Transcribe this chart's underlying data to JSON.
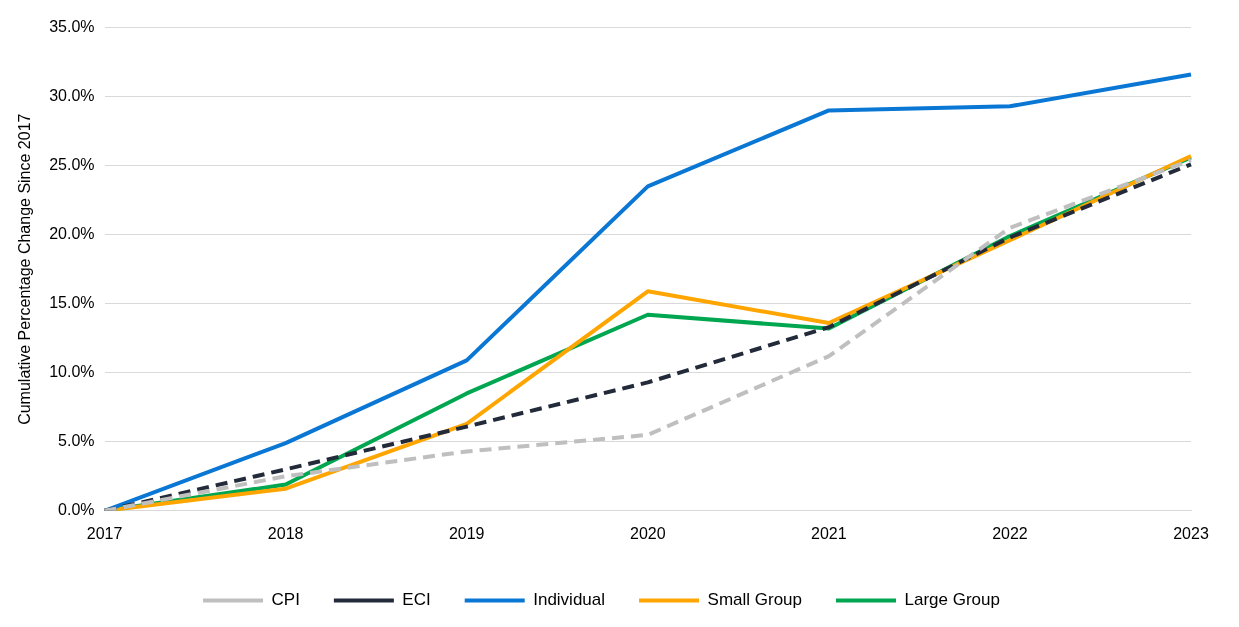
{
  "chart_data": {
    "type": "line",
    "ylabel": "Cumulative Percentage Change Since 2017",
    "categories": [
      "2017",
      "2018",
      "2019",
      "2020",
      "2021",
      "2022",
      "2023"
    ],
    "series": [
      {
        "name": "CPI",
        "color": "#bfbfbf",
        "line_style": "dashed",
        "values": [
          0,
          2.5,
          4.3,
          5.5,
          11.2,
          20.5,
          25.4
        ]
      },
      {
        "name": "ECI",
        "color": "#232b3a",
        "line_style": "dashed",
        "values": [
          0,
          3.0,
          6.1,
          9.3,
          13.3,
          19.8,
          25.1
        ]
      },
      {
        "name": "Individual",
        "color": "#0a77d4",
        "line_style": "solid",
        "values": [
          0,
          4.9,
          10.9,
          23.5,
          29.0,
          29.3,
          31.6
        ]
      },
      {
        "name": "Small Group",
        "color": "#ffa500",
        "line_style": "solid",
        "values": [
          0,
          1.6,
          6.3,
          15.9,
          13.6,
          19.6,
          25.7
        ]
      },
      {
        "name": "Large Group",
        "color": "#00a650",
        "line_style": "solid",
        "values": [
          0,
          1.9,
          8.5,
          14.2,
          13.2,
          19.9,
          25.6
        ]
      }
    ],
    "ylim": [
      0,
      35
    ],
    "yticks": [
      {
        "value": 0,
        "label": "0.0%"
      },
      {
        "value": 5,
        "label": "5.0%"
      },
      {
        "value": 10,
        "label": "10.0%"
      },
      {
        "value": 15,
        "label": "15.0%"
      },
      {
        "value": 20,
        "label": "20.0%"
      },
      {
        "value": 25,
        "label": "25.0%"
      },
      {
        "value": 30,
        "label": "30.0%"
      },
      {
        "value": 35,
        "label": "35.0%"
      }
    ],
    "grid": "y",
    "legend": "bottom",
    "marker": "none"
  }
}
